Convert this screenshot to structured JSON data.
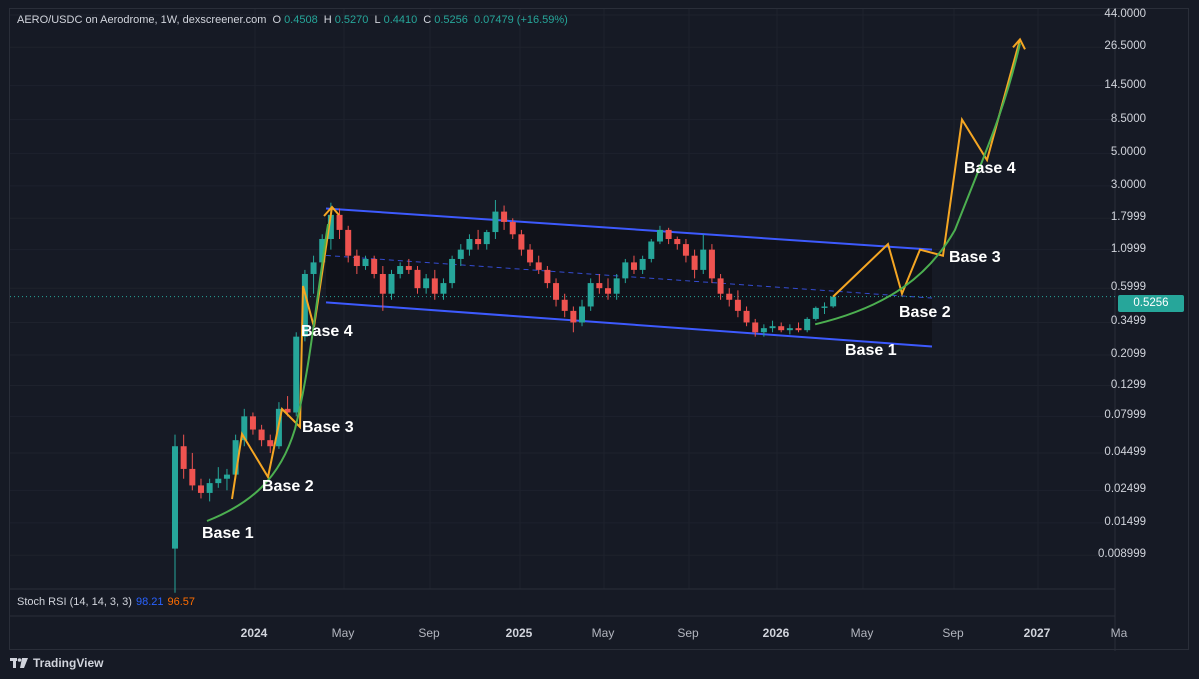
{
  "header": {
    "symbol": "AERO/USDC on Aerodrome, 1W, dexscreener.com",
    "o_label": "O",
    "o_value": "0.4508",
    "h_label": "H",
    "h_value": "0.5270",
    "l_label": "L",
    "l_value": "0.4410",
    "c_label": "C",
    "c_value": "0.5256",
    "change": "0.07479 (+16.59%)"
  },
  "indicator": {
    "name": "Stoch RSI (14, 14, 3, 3)",
    "k": "98.21",
    "d": "96.57"
  },
  "last_price": "0.5256",
  "brand": "TradingView",
  "annotations": {
    "left": [
      "Base 1",
      "Base 2",
      "Base 3",
      "Base 4"
    ],
    "right": [
      "Base 1",
      "Base 2",
      "Base 3",
      "Base 4"
    ]
  },
  "colors": {
    "up": "#26a69a",
    "down": "#ef5350",
    "channel": "#3d5afe",
    "projection": "#f5a623",
    "curve": "#4caf50",
    "background": "#161a25"
  },
  "chart_data": {
    "type": "candlestick",
    "title": "AERO/USDC on Aerodrome, 1W, dexscreener.com",
    "y_scale": "log",
    "y_ticks": [
      "44.0000",
      "26.5000",
      "14.5000",
      "8.5000",
      "5.0000",
      "3.0000",
      "1.7999",
      "1.0999",
      "0.5999",
      "0.3499",
      "0.2099",
      "0.1299",
      "0.07999",
      "0.04499",
      "0.02499",
      "0.01499",
      "0.008999"
    ],
    "x_ticks": [
      "2024",
      "May",
      "Sep",
      "2025",
      "May",
      "Sep",
      "2026",
      "May",
      "Sep",
      "2027",
      "Ma"
    ],
    "x_ticks_bold": [
      "2024",
      "2025",
      "2026",
      "2027"
    ],
    "candles_ohlc": [
      [
        0.01,
        0.06,
        0.005,
        0.05
      ],
      [
        0.05,
        0.06,
        0.03,
        0.035
      ],
      [
        0.035,
        0.045,
        0.025,
        0.027
      ],
      [
        0.027,
        0.03,
        0.022,
        0.024
      ],
      [
        0.024,
        0.03,
        0.021,
        0.028
      ],
      [
        0.028,
        0.036,
        0.026,
        0.03
      ],
      [
        0.03,
        0.035,
        0.025,
        0.032
      ],
      [
        0.032,
        0.06,
        0.03,
        0.055
      ],
      [
        0.055,
        0.09,
        0.05,
        0.08
      ],
      [
        0.08,
        0.085,
        0.06,
        0.065
      ],
      [
        0.065,
        0.07,
        0.05,
        0.055
      ],
      [
        0.055,
        0.06,
        0.045,
        0.05
      ],
      [
        0.05,
        0.1,
        0.048,
        0.09
      ],
      [
        0.09,
        0.11,
        0.08,
        0.085
      ],
      [
        0.085,
        0.3,
        0.08,
        0.28
      ],
      [
        0.28,
        0.8,
        0.26,
        0.75
      ],
      [
        0.75,
        1.0,
        0.55,
        0.9
      ],
      [
        0.9,
        1.4,
        0.85,
        1.3
      ],
      [
        1.3,
        2.3,
        1.1,
        1.9
      ],
      [
        1.9,
        2.1,
        1.3,
        1.5
      ],
      [
        1.5,
        1.6,
        0.9,
        1.0
      ],
      [
        1.0,
        1.1,
        0.75,
        0.85
      ],
      [
        0.85,
        1.0,
        0.8,
        0.95
      ],
      [
        0.95,
        1.0,
        0.7,
        0.75
      ],
      [
        0.75,
        0.85,
        0.42,
        0.55
      ],
      [
        0.55,
        0.8,
        0.5,
        0.75
      ],
      [
        0.75,
        0.9,
        0.7,
        0.85
      ],
      [
        0.85,
        0.95,
        0.75,
        0.8
      ],
      [
        0.8,
        0.85,
        0.55,
        0.6
      ],
      [
        0.6,
        0.75,
        0.55,
        0.7
      ],
      [
        0.7,
        0.8,
        0.5,
        0.55
      ],
      [
        0.55,
        0.7,
        0.5,
        0.65
      ],
      [
        0.65,
        1.0,
        0.6,
        0.95
      ],
      [
        0.95,
        1.2,
        0.85,
        1.1
      ],
      [
        1.1,
        1.4,
        1.0,
        1.3
      ],
      [
        1.3,
        1.5,
        1.1,
        1.2
      ],
      [
        1.2,
        1.5,
        1.1,
        1.45
      ],
      [
        1.45,
        2.4,
        1.3,
        2.0
      ],
      [
        2.0,
        2.2,
        1.5,
        1.7
      ],
      [
        1.7,
        1.8,
        1.3,
        1.4
      ],
      [
        1.4,
        1.5,
        1.0,
        1.1
      ],
      [
        1.1,
        1.2,
        0.85,
        0.9
      ],
      [
        0.9,
        1.0,
        0.75,
        0.8
      ],
      [
        0.8,
        0.85,
        0.6,
        0.65
      ],
      [
        0.65,
        0.7,
        0.45,
        0.5
      ],
      [
        0.5,
        0.55,
        0.38,
        0.42
      ],
      [
        0.42,
        0.45,
        0.3,
        0.35
      ],
      [
        0.35,
        0.5,
        0.33,
        0.45
      ],
      [
        0.45,
        0.7,
        0.42,
        0.65
      ],
      [
        0.65,
        0.75,
        0.55,
        0.6
      ],
      [
        0.6,
        0.7,
        0.5,
        0.55
      ],
      [
        0.55,
        0.75,
        0.5,
        0.7
      ],
      [
        0.7,
        0.95,
        0.65,
        0.9
      ],
      [
        0.9,
        1.0,
        0.75,
        0.8
      ],
      [
        0.8,
        1.0,
        0.75,
        0.95
      ],
      [
        0.95,
        1.3,
        0.9,
        1.25
      ],
      [
        1.25,
        1.6,
        1.2,
        1.5
      ],
      [
        1.5,
        1.55,
        1.2,
        1.3
      ],
      [
        1.3,
        1.35,
        1.1,
        1.2
      ],
      [
        1.2,
        1.3,
        0.9,
        1.0
      ],
      [
        1.0,
        1.1,
        0.7,
        0.8
      ],
      [
        0.8,
        1.4,
        0.75,
        1.1
      ],
      [
        1.1,
        1.2,
        0.65,
        0.7
      ],
      [
        0.7,
        0.75,
        0.5,
        0.55
      ],
      [
        0.55,
        0.6,
        0.45,
        0.5
      ],
      [
        0.5,
        0.58,
        0.38,
        0.42
      ],
      [
        0.42,
        0.45,
        0.33,
        0.35
      ],
      [
        0.35,
        0.37,
        0.28,
        0.3
      ],
      [
        0.3,
        0.34,
        0.28,
        0.32
      ],
      [
        0.32,
        0.36,
        0.3,
        0.33
      ],
      [
        0.33,
        0.35,
        0.3,
        0.31
      ],
      [
        0.31,
        0.34,
        0.29,
        0.32
      ],
      [
        0.32,
        0.35,
        0.3,
        0.31
      ],
      [
        0.31,
        0.38,
        0.3,
        0.37
      ],
      [
        0.37,
        0.45,
        0.36,
        0.44
      ],
      [
        0.44,
        0.48,
        0.4,
        0.45
      ],
      [
        0.4508,
        0.527,
        0.441,
        0.5256
      ]
    ],
    "channel": {
      "upper_start": 2.1,
      "upper_end": 1.1,
      "lower_start": 0.48,
      "lower_end": 0.24
    },
    "projection_targets": [
      0.5256,
      1.2,
      0.55,
      1.1,
      1.0,
      8.5,
      4.5,
      30.0
    ]
  }
}
